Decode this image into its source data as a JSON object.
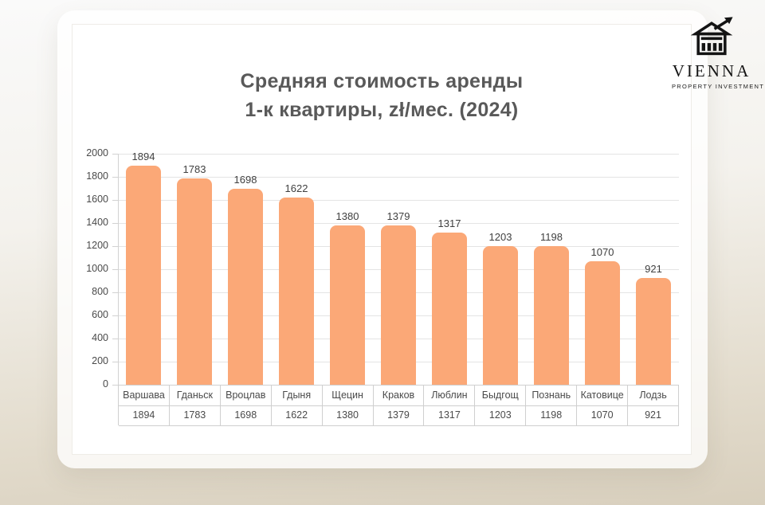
{
  "logo": {
    "brand": "VIENNA",
    "tagline": "PROPERTY INVESTMENT",
    "icon": "bank-building-with-growth-arrow-icon"
  },
  "chart_data": {
    "type": "bar",
    "title": "Средняя стоимость аренды",
    "subtitle": "1-к квартиры, zł/мес. (2024)",
    "categories": [
      "Варшава",
      "Гданьск",
      "Вроцлав",
      "Гдыня",
      "Щецин",
      "Краков",
      "Люблин",
      "Быдгощ",
      "Познань",
      "Катовице",
      "Лодзь"
    ],
    "values": [
      1894,
      1783,
      1698,
      1622,
      1380,
      1379,
      1317,
      1203,
      1198,
      1070,
      921
    ],
    "xlabel": "",
    "ylabel": "",
    "ylim": [
      0,
      2000
    ],
    "ytick_step": 200,
    "grid": true,
    "legend": "none",
    "data_labels": true,
    "data_table_shown": true,
    "bar_color": "#FBA877",
    "title_color": "#595959",
    "text_color": "#4a4a4a"
  }
}
